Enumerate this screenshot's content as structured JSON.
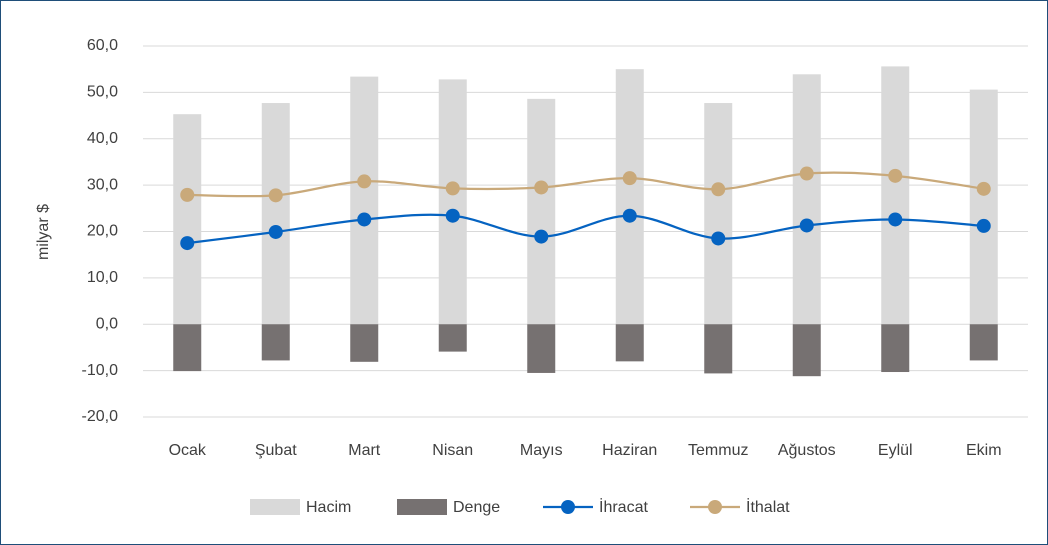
{
  "chart_data": {
    "type": "combo",
    "ylabel": "milyar $",
    "categories": [
      "Ocak",
      "Şubat",
      "Mart",
      "Nisan",
      "Mayıs",
      "Haziran",
      "Temmuz",
      "Ağustos",
      "Eylül",
      "Ekim"
    ],
    "series": [
      {
        "name": "Hacim",
        "type": "bar",
        "color": "#d9d9d9",
        "values": [
          45.3,
          47.7,
          53.4,
          52.8,
          48.6,
          55.0,
          47.7,
          53.9,
          55.6,
          50.6
        ]
      },
      {
        "name": "Denge",
        "type": "bar",
        "color": "#767171",
        "values": [
          -10.1,
          -7.8,
          -8.1,
          -5.9,
          -10.5,
          -8.0,
          -10.6,
          -11.2,
          -10.3,
          -7.8
        ]
      },
      {
        "name": "İhracat",
        "type": "line",
        "color": "#0563c1",
        "values": [
          17.5,
          19.9,
          22.6,
          23.4,
          18.9,
          23.4,
          18.5,
          21.3,
          22.6,
          21.2
        ]
      },
      {
        "name": "İthalat",
        "type": "line",
        "color": "#c9a97a",
        "values": [
          27.9,
          27.8,
          30.8,
          29.3,
          29.5,
          31.5,
          29.1,
          32.5,
          32.0,
          29.2
        ]
      }
    ],
    "ylim": [
      -20,
      60
    ],
    "yticks": [
      {
        "value": -20,
        "label": "-20,0"
      },
      {
        "value": -10,
        "label": "-10,0"
      },
      {
        "value": 0,
        "label": "0,0"
      },
      {
        "value": 10,
        "label": "10,0"
      },
      {
        "value": 20,
        "label": "20,0"
      },
      {
        "value": 30,
        "label": "30,0"
      },
      {
        "value": 40,
        "label": "40,0"
      },
      {
        "value": 50,
        "label": "50,0"
      },
      {
        "value": 60,
        "label": "60,0"
      }
    ],
    "grid": true,
    "legend": "bottom"
  }
}
